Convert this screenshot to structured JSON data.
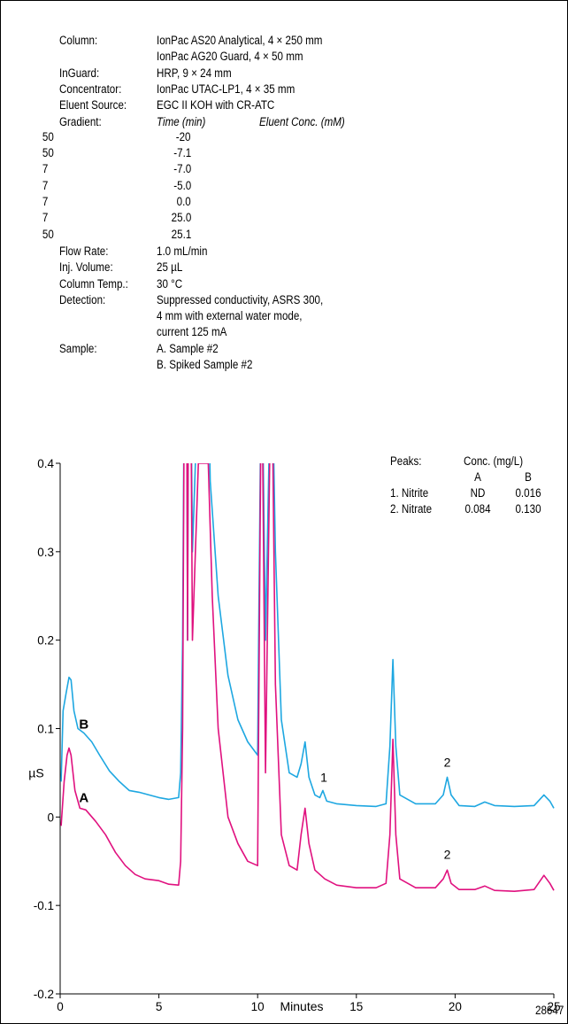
{
  "conditions": [
    {
      "label": "Column:",
      "lines": [
        "IonPac AS20 Analytical, 4 × 250 mm",
        "IonPac AG20 Guard, 4 × 50 mm"
      ]
    },
    {
      "label": "InGuard:",
      "lines": [
        "HRP, 9 × 24 mm"
      ]
    },
    {
      "label": "Concentrator:",
      "lines": [
        "IonPac UTAC-LP1, 4 × 35 mm"
      ]
    },
    {
      "label": "Eluent Source:",
      "lines": [
        "EGC II KOH with CR-ATC"
      ]
    },
    {
      "label": "Gradient:",
      "lines": []
    },
    {
      "label": "Flow Rate:",
      "lines": [
        "1.0 mL/min"
      ]
    },
    {
      "label": "Inj. Volume:",
      "lines": [
        "25 µL"
      ]
    },
    {
      "label": "Column Temp.:",
      "lines": [
        "30 °C"
      ]
    },
    {
      "label": "Detection:",
      "lines": [
        "Suppressed conductivity, ASRS 300,",
        "4 mm with external water mode,",
        "current 125 mA"
      ]
    },
    {
      "label": "Sample:",
      "lines": [
        "A. Sample #2",
        "B. Spiked Sample #2"
      ]
    }
  ],
  "gradient": {
    "headers": [
      "Time (min)",
      "Eluent Conc. (mM)"
    ],
    "rows": [
      [
        "-20",
        "50"
      ],
      [
        "-7.1",
        "50"
      ],
      [
        "-7.0",
        "7"
      ],
      [
        "-5.0",
        "7"
      ],
      [
        "0.0",
        "7"
      ],
      [
        "25.0",
        "7"
      ],
      [
        "25.1",
        "50"
      ]
    ]
  },
  "peaks_table": {
    "title": "Peaks:",
    "conc_header": "Conc. (mg/L)",
    "col_a": "A",
    "col_b": "B",
    "rows": [
      {
        "name": "1. Nitrite",
        "a": "ND",
        "b": "0.016"
      },
      {
        "name": "2. Nitrate",
        "a": "0.084",
        "b": "0.130"
      }
    ]
  },
  "figure_number": "28647",
  "chart_data": {
    "type": "line",
    "xlabel": "Minutes",
    "ylabel": "µS",
    "xlim": [
      0,
      25
    ],
    "ylim": [
      -0.2,
      0.4
    ],
    "x_ticks": [
      "0",
      "5",
      "10",
      "15",
      "20",
      "25"
    ],
    "y_ticks": [
      "0.4",
      "0.3",
      "0.2",
      "0.1",
      "0",
      "-0.1",
      "-0.2"
    ],
    "grid": false,
    "series": [
      {
        "name": "B",
        "color": "#1ea7e1",
        "points": [
          [
            0.05,
            0.04
          ],
          [
            0.15,
            0.12
          ],
          [
            0.3,
            0.14
          ],
          [
            0.45,
            0.158
          ],
          [
            0.55,
            0.155
          ],
          [
            0.7,
            0.12
          ],
          [
            0.9,
            0.1
          ],
          [
            1.2,
            0.095
          ],
          [
            1.6,
            0.085
          ],
          [
            2.0,
            0.07
          ],
          [
            2.5,
            0.052
          ],
          [
            3.0,
            0.04
          ],
          [
            3.5,
            0.03
          ],
          [
            4.0,
            0.028
          ],
          [
            4.5,
            0.025
          ],
          [
            5.0,
            0.022
          ],
          [
            5.5,
            0.02
          ],
          [
            6.0,
            0.022
          ],
          [
            6.1,
            0.05
          ],
          [
            6.2,
            0.2
          ],
          [
            6.3,
            0.55
          ],
          [
            6.4,
            0.55
          ],
          [
            6.45,
            0.2
          ],
          [
            6.5,
            0.55
          ],
          [
            6.6,
            0.55
          ],
          [
            6.7,
            0.3
          ],
          [
            7.0,
            0.5
          ],
          [
            7.5,
            0.5
          ],
          [
            7.6,
            0.38
          ],
          [
            8.0,
            0.25
          ],
          [
            8.5,
            0.16
          ],
          [
            9.0,
            0.11
          ],
          [
            9.5,
            0.085
          ],
          [
            10.0,
            0.07
          ],
          [
            10.05,
            0.2
          ],
          [
            10.2,
            0.55
          ],
          [
            10.4,
            0.2
          ],
          [
            10.7,
            0.55
          ],
          [
            10.9,
            0.3
          ],
          [
            11.2,
            0.11
          ],
          [
            11.6,
            0.05
          ],
          [
            12.0,
            0.045
          ],
          [
            12.2,
            0.06
          ],
          [
            12.4,
            0.085
          ],
          [
            12.6,
            0.045
          ],
          [
            12.9,
            0.025
          ],
          [
            13.15,
            0.022
          ],
          [
            13.3,
            0.03
          ],
          [
            13.5,
            0.018
          ],
          [
            14.0,
            0.015
          ],
          [
            15.0,
            0.013
          ],
          [
            16.0,
            0.012
          ],
          [
            16.5,
            0.015
          ],
          [
            16.7,
            0.08
          ],
          [
            16.85,
            0.178
          ],
          [
            17.0,
            0.08
          ],
          [
            17.2,
            0.025
          ],
          [
            18.0,
            0.015
          ],
          [
            19.0,
            0.015
          ],
          [
            19.4,
            0.025
          ],
          [
            19.6,
            0.045
          ],
          [
            19.8,
            0.025
          ],
          [
            20.2,
            0.013
          ],
          [
            21.0,
            0.012
          ],
          [
            21.5,
            0.017
          ],
          [
            22.0,
            0.013
          ],
          [
            23.0,
            0.012
          ],
          [
            24.0,
            0.013
          ],
          [
            24.5,
            0.025
          ],
          [
            24.8,
            0.018
          ],
          [
            25.0,
            0.01
          ]
        ]
      },
      {
        "name": "A",
        "color": "#e0117f",
        "points": [
          [
            0.05,
            -0.01
          ],
          [
            0.2,
            0.04
          ],
          [
            0.35,
            0.07
          ],
          [
            0.45,
            0.078
          ],
          [
            0.55,
            0.07
          ],
          [
            0.75,
            0.03
          ],
          [
            1.0,
            0.01
          ],
          [
            1.3,
            0.008
          ],
          [
            1.8,
            -0.005
          ],
          [
            2.3,
            -0.02
          ],
          [
            2.8,
            -0.04
          ],
          [
            3.3,
            -0.055
          ],
          [
            3.8,
            -0.065
          ],
          [
            4.3,
            -0.07
          ],
          [
            5.0,
            -0.072
          ],
          [
            5.5,
            -0.076
          ],
          [
            6.0,
            -0.077
          ],
          [
            6.1,
            -0.05
          ],
          [
            6.2,
            0.1
          ],
          [
            6.3,
            0.55
          ],
          [
            6.4,
            0.55
          ],
          [
            6.45,
            0.2
          ],
          [
            6.5,
            0.55
          ],
          [
            6.6,
            0.55
          ],
          [
            6.7,
            0.2
          ],
          [
            7.0,
            0.4
          ],
          [
            7.5,
            0.4
          ],
          [
            7.7,
            0.25
          ],
          [
            8.0,
            0.1
          ],
          [
            8.5,
            0.0
          ],
          [
            9.0,
            -0.03
          ],
          [
            9.5,
            -0.05
          ],
          [
            10.0,
            -0.055
          ],
          [
            10.05,
            0.1
          ],
          [
            10.2,
            0.55
          ],
          [
            10.4,
            0.05
          ],
          [
            10.7,
            0.55
          ],
          [
            10.9,
            0.15
          ],
          [
            11.2,
            -0.02
          ],
          [
            11.6,
            -0.055
          ],
          [
            12.0,
            -0.06
          ],
          [
            12.2,
            -0.02
          ],
          [
            12.4,
            0.01
          ],
          [
            12.6,
            -0.03
          ],
          [
            12.9,
            -0.06
          ],
          [
            13.4,
            -0.07
          ],
          [
            14.0,
            -0.077
          ],
          [
            15.0,
            -0.08
          ],
          [
            16.0,
            -0.08
          ],
          [
            16.5,
            -0.075
          ],
          [
            16.7,
            -0.02
          ],
          [
            16.85,
            0.088
          ],
          [
            17.0,
            -0.02
          ],
          [
            17.2,
            -0.07
          ],
          [
            18.0,
            -0.08
          ],
          [
            19.0,
            -0.08
          ],
          [
            19.4,
            -0.07
          ],
          [
            19.6,
            -0.06
          ],
          [
            19.8,
            -0.075
          ],
          [
            20.2,
            -0.082
          ],
          [
            21.0,
            -0.082
          ],
          [
            21.5,
            -0.078
          ],
          [
            22.0,
            -0.083
          ],
          [
            23.0,
            -0.084
          ],
          [
            24.0,
            -0.082
          ],
          [
            24.5,
            -0.066
          ],
          [
            24.8,
            -0.075
          ],
          [
            25.0,
            -0.083
          ]
        ]
      }
    ],
    "annotations": [
      {
        "text": "B",
        "x": 1.2,
        "y": 0.1
      },
      {
        "text": "A",
        "x": 1.2,
        "y": 0.017
      },
      {
        "text": "1",
        "x": 13.35,
        "y": 0.04
      },
      {
        "text": "2",
        "x": 19.6,
        "y": 0.057
      },
      {
        "text": "2",
        "x": 19.6,
        "y": -0.047
      }
    ]
  }
}
